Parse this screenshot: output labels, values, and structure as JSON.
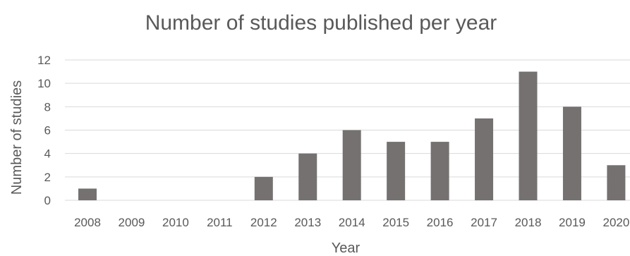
{
  "chart_data": {
    "type": "bar",
    "title": "Number of studies published per year",
    "xlabel": "Year",
    "ylabel": "Number of studies",
    "categories": [
      "2008",
      "2009",
      "2010",
      "2011",
      "2012",
      "2013",
      "2014",
      "2015",
      "2016",
      "2017",
      "2018",
      "2019",
      "2020"
    ],
    "values": [
      1,
      0,
      0,
      0,
      2,
      4,
      6,
      5,
      5,
      7,
      11,
      8,
      3
    ],
    "ylim": [
      0,
      12
    ],
    "yticks": [
      "0",
      "2",
      "4",
      "6",
      "8",
      "10",
      "12"
    ],
    "grid": true,
    "legend": "none",
    "colors": {
      "bar": "#757171",
      "grid": "#d9d9d9",
      "text": "#595959"
    }
  }
}
